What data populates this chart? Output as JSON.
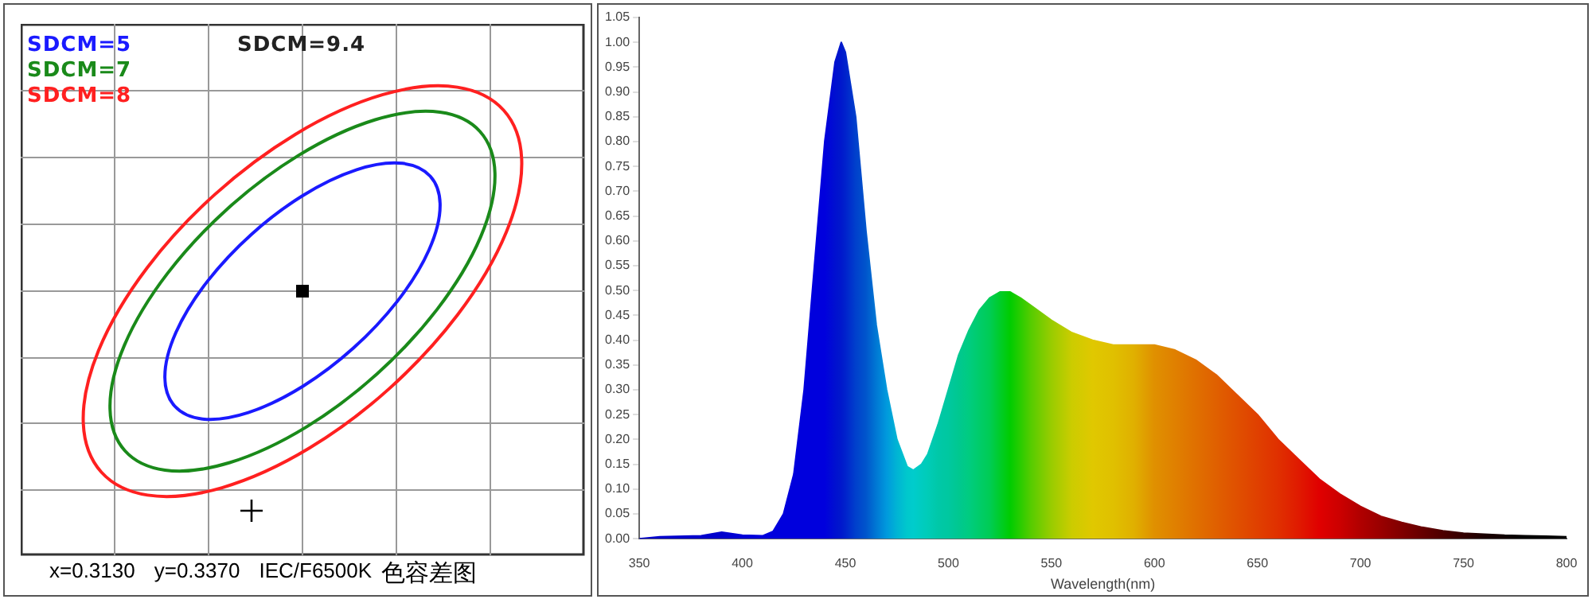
{
  "chart_data": [
    {
      "type": "other",
      "annotations": [
        "SDCM=5",
        "SDCM=7",
        "SDCM=8",
        "SDCM=9.4",
        "x=0.3130",
        "y=0.3370",
        "IEC/F6500K",
        "色容差图"
      ]
    },
    {
      "type": "area",
      "xlabel": "Wavelength(nm)",
      "xlim": [
        350,
        800
      ],
      "xticks": [
        350,
        400,
        450,
        500,
        550,
        600,
        650,
        700,
        750,
        800
      ],
      "ylim": [
        0,
        1.05
      ],
      "yticks": [
        {
          "value": 0,
          "label": "0.00"
        },
        {
          "value": 0.05,
          "label": "0.05"
        },
        {
          "value": 0.1,
          "label": "0.10"
        },
        {
          "value": 0.15,
          "label": "0.15"
        },
        {
          "value": 0.2,
          "label": "0.20"
        },
        {
          "value": 0.25,
          "label": "0.25"
        },
        {
          "value": 0.3,
          "label": "0.30"
        },
        {
          "value": 0.35,
          "label": "0.35"
        },
        {
          "value": 0.4,
          "label": "0.40"
        },
        {
          "value": 0.45,
          "label": "0.45"
        },
        {
          "value": 0.5,
          "label": "0.50"
        },
        {
          "value": 0.55,
          "label": "0.55"
        },
        {
          "value": 0.6,
          "label": "0.60"
        },
        {
          "value": 0.65,
          "label": "0.65"
        },
        {
          "value": 0.7,
          "label": "0.70"
        },
        {
          "value": 0.75,
          "label": "0.75"
        },
        {
          "value": 0.8,
          "label": "0.80"
        },
        {
          "value": 0.85,
          "label": "0.85"
        },
        {
          "value": 0.9,
          "label": "0.90"
        },
        {
          "value": 0.95,
          "label": "0.95"
        },
        {
          "value": 1,
          "label": "1.00"
        },
        {
          "value": 1.05,
          "label": "1.05"
        }
      ],
      "x": [
        350,
        360,
        380,
        390,
        400,
        410,
        415,
        420,
        425,
        430,
        435,
        440,
        445,
        448,
        450,
        455,
        460,
        465,
        470,
        475,
        480,
        483,
        487,
        490,
        495,
        500,
        505,
        510,
        515,
        520,
        525,
        530,
        535,
        540,
        550,
        560,
        570,
        580,
        590,
        600,
        610,
        620,
        630,
        640,
        650,
        660,
        670,
        680,
        690,
        700,
        710,
        720,
        730,
        740,
        750,
        760,
        770,
        780,
        790,
        800
      ],
      "series": [
        {
          "values": [
            0.0,
            0.004,
            0.006,
            0.013,
            0.007,
            0.006,
            0.015,
            0.05,
            0.13,
            0.3,
            0.55,
            0.8,
            0.96,
            1.0,
            0.98,
            0.85,
            0.62,
            0.43,
            0.3,
            0.2,
            0.145,
            0.138,
            0.15,
            0.17,
            0.23,
            0.3,
            0.37,
            0.42,
            0.46,
            0.485,
            0.497,
            0.497,
            0.485,
            0.47,
            0.44,
            0.415,
            0.4,
            0.39,
            0.39,
            0.39,
            0.38,
            0.36,
            0.33,
            0.29,
            0.25,
            0.2,
            0.16,
            0.12,
            0.09,
            0.065,
            0.045,
            0.033,
            0.023,
            0.016,
            0.011,
            0.009,
            0.007,
            0.006,
            0.005,
            0.004
          ],
          "colors": [
            "#0000cc",
            "#0000cc",
            "#0000cc",
            "#0000cc",
            "#0000d8",
            "#0000dd",
            "#0000dd",
            "#0000dd",
            "#0000dd",
            "#0000dd",
            "#0000dd",
            "#0000dd",
            "#0010d0",
            "#0018cc",
            "#0022cc",
            "#0040cc",
            "#0055cc",
            "#0078d4",
            "#0099dd",
            "#00b4d4",
            "#00c8cc",
            "#00cccc",
            "#00ccc0",
            "#00ccb8",
            "#00c8a8",
            "#00c8a0",
            "#00c890",
            "#00cc80",
            "#00cc6a",
            "#00cc55",
            "#00cc2a",
            "#00cc00",
            "#2acc00",
            "#55cc00",
            "#99cc00",
            "#cccc00",
            "#e0c800",
            "#e0c000",
            "#e0b000",
            "#e09000",
            "#e08000",
            "#e07000",
            "#e06000",
            "#e05000",
            "#e04000",
            "#e03000",
            "#e01a00",
            "#e00000",
            "#cc0000",
            "#b00000",
            "#990000",
            "#800000",
            "#660000",
            "#4d0000",
            "#330000",
            "#1a0000",
            "#100000",
            "#000000",
            "#000000",
            "#000000"
          ]
        }
      ]
    }
  ]
}
